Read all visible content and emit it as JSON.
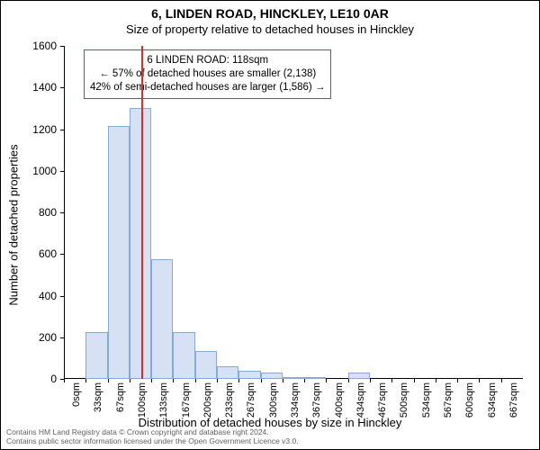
{
  "title_line1": "6, LINDEN ROAD, HINCKLEY, LE10 0AR",
  "title_line2": "Size of property relative to detached houses in Hinckley",
  "ylabel": "Number of detached properties",
  "xlabel": "Distribution of detached houses by size in Hinckley",
  "footnote": "Contains HM Land Registry data © Crown copyright and database right 2024.\nContains public sector information licensed under the Open Government Licence v3.0.",
  "annotation": {
    "line1": "6 LINDEN ROAD: 118sqm",
    "line2": "← 57% of detached houses are smaller (2,138)",
    "line3": "42% of semi-detached houses are larger (1,586) →",
    "border_color": "#d03030"
  },
  "chart": {
    "type": "histogram",
    "background_color": "#ffffff",
    "bar_fill": "#d6e2f3",
    "bar_border": "#8aa8d6",
    "marker_color": "#d03030",
    "marker_x": 3.55,
    "ylim": [
      0,
      1600
    ],
    "ytick_step": 200,
    "yticks": [
      0,
      200,
      400,
      600,
      800,
      1000,
      1200,
      1400,
      1600
    ],
    "categories_sqm": [
      0,
      33,
      67,
      100,
      133,
      167,
      200,
      233,
      267,
      300,
      334,
      367,
      400,
      434,
      467,
      500,
      534,
      567,
      600,
      634,
      667
    ],
    "values": [
      0,
      225,
      1215,
      1300,
      575,
      225,
      135,
      60,
      40,
      30,
      10,
      10,
      0,
      30,
      0,
      0,
      0,
      0,
      0,
      0,
      0
    ],
    "bar_width_ratio": 1.0
  }
}
